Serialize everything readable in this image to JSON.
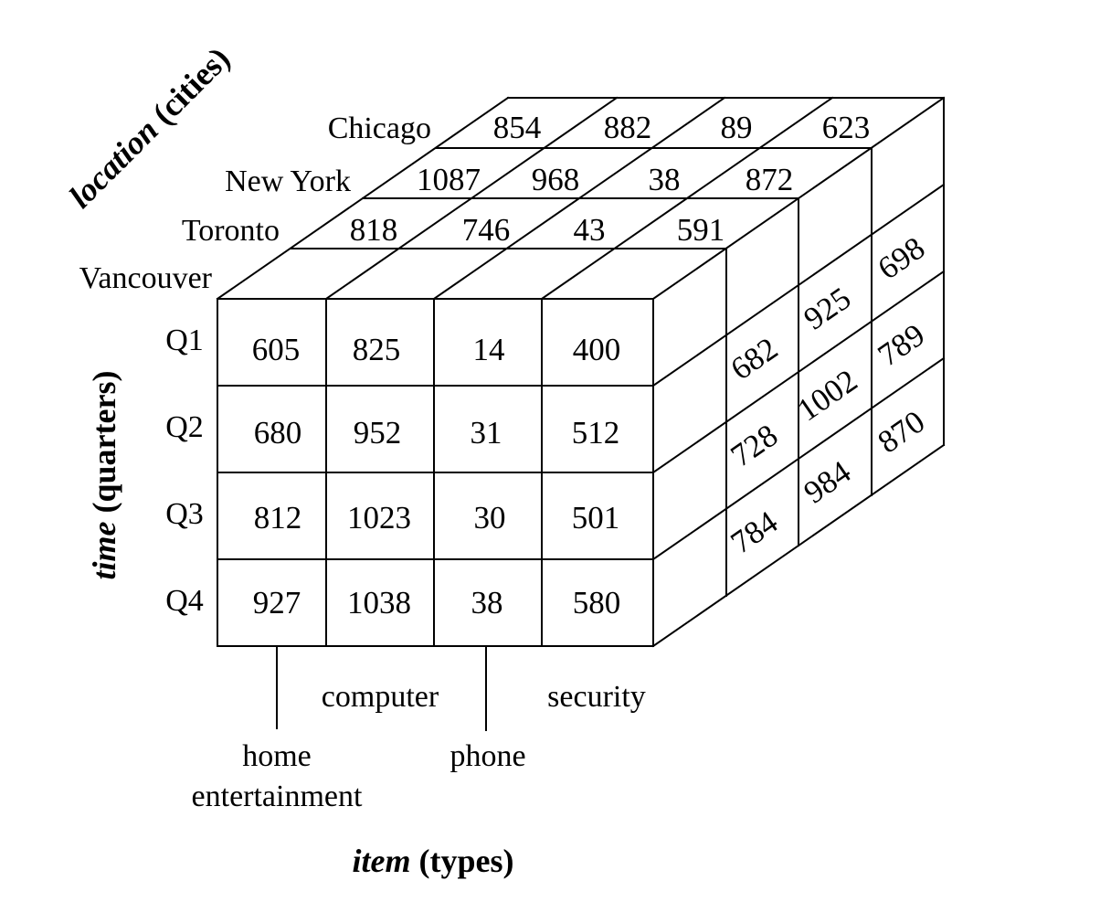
{
  "axes": {
    "location": {
      "name": "location",
      "unit": "(cities)"
    },
    "time": {
      "name": "time",
      "unit": "(quarters)"
    },
    "item": {
      "name": "item",
      "unit": "(types)"
    }
  },
  "cities": [
    "Chicago",
    "New York",
    "Toronto",
    "Vancouver"
  ],
  "quarters": [
    "Q1",
    "Q2",
    "Q3",
    "Q4"
  ],
  "items": [
    {
      "line1": "home",
      "line2": "entertainment"
    },
    {
      "line1": "computer"
    },
    {
      "line1": "phone"
    },
    {
      "line1": "security"
    }
  ],
  "front_face_vancouver": [
    [
      "605",
      "825",
      "14",
      "400"
    ],
    [
      "680",
      "952",
      "31",
      "512"
    ],
    [
      "812",
      "1023",
      "30",
      "501"
    ],
    [
      "927",
      "1038",
      "38",
      "580"
    ]
  ],
  "top_face_q1": {
    "Chicago": [
      "854",
      "882",
      "89",
      "623"
    ],
    "New York": [
      "1087",
      "968",
      "38",
      "872"
    ],
    "Toronto": [
      "818",
      "746",
      "43",
      "591"
    ]
  },
  "right_face_security": {
    "Toronto": [
      "682",
      "728",
      "784"
    ],
    "New York": [
      "925",
      "1002",
      "984"
    ],
    "Chicago": [
      "698",
      "789",
      "870"
    ]
  }
}
